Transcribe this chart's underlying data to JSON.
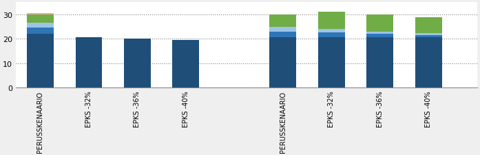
{
  "categories_group1": [
    "PERUSSKENAARIO",
    "EPKS -32%",
    "EPKS -36%",
    "EPKS -40%"
  ],
  "categories_group2": [
    "PERUSSKENAARIO",
    "EPKS -32%",
    "EPKS -36%",
    "EPKS -40%"
  ],
  "bar_width": 0.55,
  "colors": {
    "dark_blue": "#1F4E79",
    "mid_blue": "#2E75B6",
    "light_blue": "#9DC3E6",
    "green": "#70AD47",
    "salmon": "#F4A5A0"
  },
  "g1": {
    "dark_blue": [
      22.0,
      20.5,
      20.0,
      19.5
    ],
    "mid_blue": [
      2.5,
      0.0,
      0.0,
      0.0
    ],
    "light_blue": [
      2.0,
      0.0,
      0.0,
      0.0
    ],
    "green": [
      3.5,
      0.0,
      0.0,
      0.0
    ],
    "salmon": [
      0.5,
      0.0,
      0.0,
      0.0
    ]
  },
  "g2": {
    "dark_blue": [
      20.5,
      20.5,
      20.5,
      20.5
    ],
    "mid_blue": [
      2.5,
      2.0,
      1.5,
      1.0
    ],
    "light_blue": [
      2.0,
      1.5,
      1.0,
      0.8
    ],
    "green": [
      5.0,
      7.0,
      7.0,
      6.5
    ],
    "salmon": [
      0.0,
      0.0,
      0.0,
      0.0
    ]
  },
  "ylim": [
    0,
    35
  ],
  "yticks": [
    0,
    10,
    20,
    30
  ],
  "background_color": "#EFEFEF",
  "plot_bg_color": "#FFFFFF"
}
